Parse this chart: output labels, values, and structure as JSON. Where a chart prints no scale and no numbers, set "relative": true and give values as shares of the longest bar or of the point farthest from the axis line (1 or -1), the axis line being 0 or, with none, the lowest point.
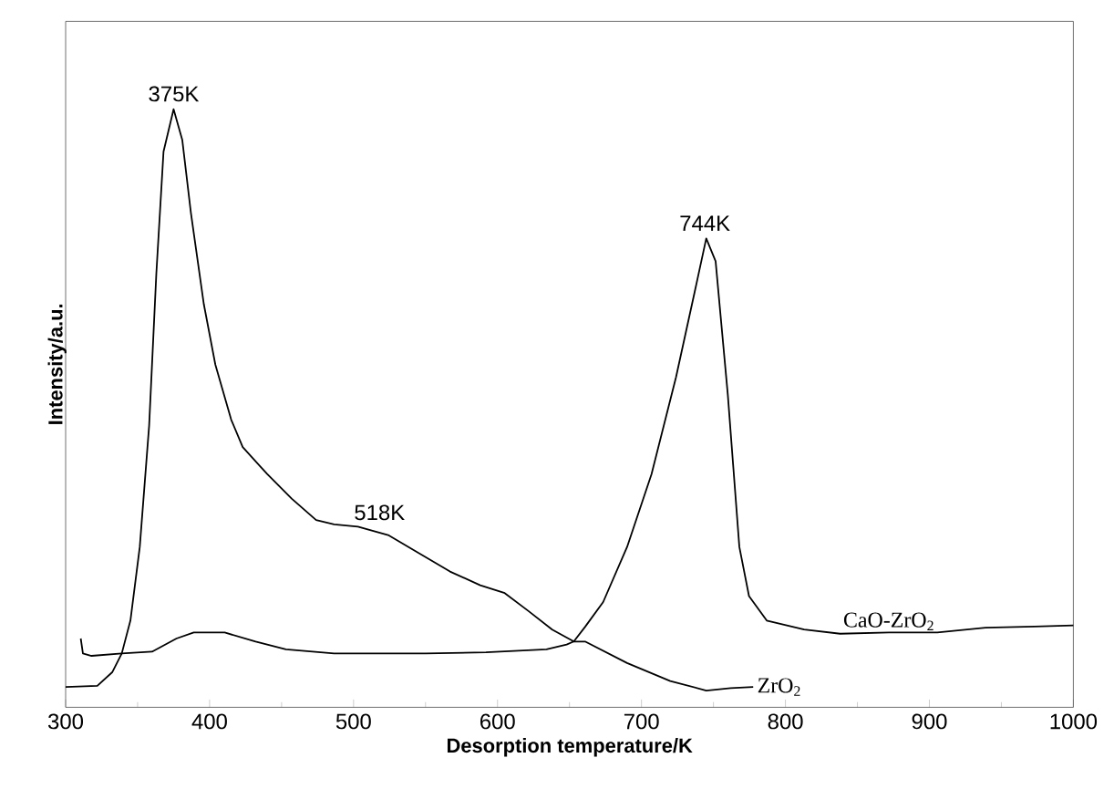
{
  "chart_data": {
    "type": "line",
    "relative": true,
    "xlabel": "Desorption temperature/K",
    "ylabel": "Intensity/a.u.",
    "xlim": [
      300,
      1000
    ],
    "xticks": [
      300,
      400,
      500,
      600,
      700,
      800,
      900,
      1000
    ],
    "legend": false,
    "grid": false,
    "marker": "none",
    "line_style": "solid",
    "annotations": [
      {
        "text": "375K",
        "x": 375,
        "y": 1
      },
      {
        "text": "518K",
        "x": 518,
        "y": 0.3
      },
      {
        "text": "744K",
        "x": 744,
        "y": 0.784
      }
    ],
    "series": [
      {
        "name": "CaO-ZrO$_{2}$",
        "color": "#000000",
        "x": [
          310.5,
          312,
          318,
          339,
          360,
          377,
          389,
          410.5,
          432,
          453,
          486.5,
          516,
          550,
          592,
          634,
          648,
          653,
          661,
          673.4,
          690,
          707,
          724,
          737,
          745,
          751.5,
          760,
          768,
          774.7,
          787,
          813,
          838,
          872,
          905.5,
          939,
          973,
          1000
        ],
        "values": [
          0.115,
          0.09,
          0.086,
          0.09,
          0.093,
          0.115,
          0.125,
          0.125,
          0.11,
          0.097,
          0.09,
          0.09,
          0.09,
          0.092,
          0.097,
          0.105,
          0.11,
          0.135,
          0.176,
          0.268,
          0.39,
          0.552,
          0.695,
          0.784,
          0.746,
          0.522,
          0.268,
          0.186,
          0.145,
          0.13,
          0.123,
          0.125,
          0.125,
          0.133,
          0.135,
          0.137
        ]
      },
      {
        "name": "ZrO$_{2}$",
        "color": "#000000",
        "x": [
          300,
          322,
          332.5,
          339,
          345,
          351.5,
          358,
          363,
          368,
          375,
          381,
          387,
          396,
          404,
          415,
          423,
          440,
          457,
          474,
          486.5,
          503,
          524,
          546,
          567,
          588,
          605,
          621.5,
          638,
          653,
          660.8,
          690,
          720,
          745,
          762,
          777.6
        ],
        "values": [
          0.034,
          0.036,
          0.059,
          0.09,
          0.145,
          0.268,
          0.471,
          0.725,
          0.929,
          1,
          0.949,
          0.827,
          0.674,
          0.573,
          0.481,
          0.435,
          0.39,
          0.349,
          0.313,
          0.306,
          0.302,
          0.288,
          0.257,
          0.227,
          0.204,
          0.191,
          0.161,
          0.13,
          0.11,
          0.11,
          0.074,
          0.044,
          0.028,
          0.032,
          0.034
        ]
      }
    ]
  }
}
